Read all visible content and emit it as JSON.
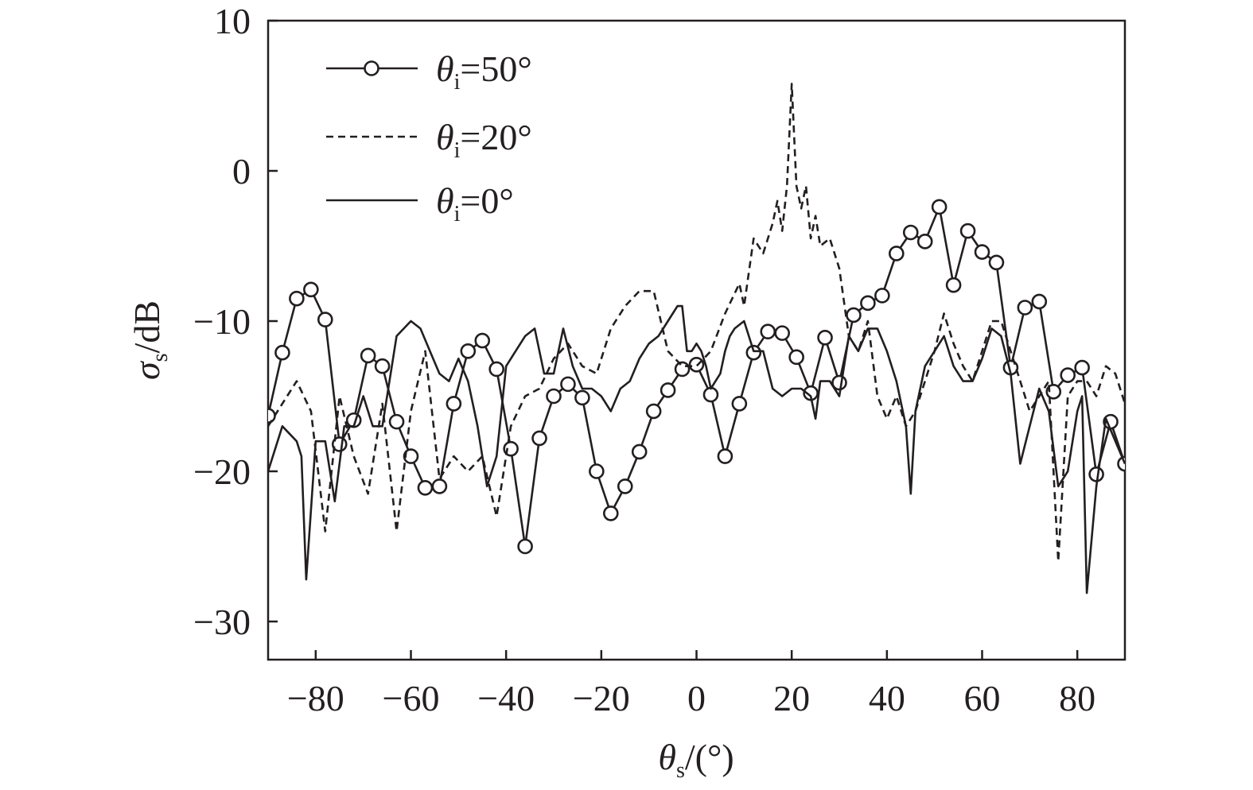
{
  "chart_data": {
    "type": "line",
    "xlabel": {
      "symbol": "θ",
      "sub": "s",
      "rest": "/(°)"
    },
    "ylabel": {
      "symbol": "σ",
      "sub": "s",
      "rest": "/dB"
    },
    "xlim": [
      -90,
      90
    ],
    "ylim": [
      -33,
      10
    ],
    "xticks": [
      -80,
      -60,
      -40,
      -20,
      0,
      20,
      40,
      60,
      80
    ],
    "xtick_labels": [
      "−80",
      "−60",
      "−40",
      "−20",
      "0",
      "20",
      "40",
      "60",
      "80"
    ],
    "yticks": [
      10,
      0,
      -10,
      -20,
      -30
    ],
    "ytick_labels": [
      "10",
      "0",
      "−10",
      "−20",
      "−30"
    ],
    "grid": false,
    "legend_position": "top-left",
    "series": [
      {
        "name": "θi=50°",
        "legend": {
          "symbol": "θ",
          "sub": "i",
          "rest": "=50°"
        },
        "style": "solid-circle",
        "x": [
          -90,
          -87,
          -84,
          -81,
          -78,
          -75,
          -72,
          -69,
          -66,
          -63,
          -60,
          -57,
          -54,
          -51,
          -48,
          -45,
          -42,
          -39,
          -36,
          -33,
          -30,
          -27,
          -24,
          -21,
          -18,
          -15,
          -12,
          -9,
          -6,
          -3,
          0,
          3,
          6,
          9,
          12,
          15,
          18,
          21,
          24,
          27,
          30,
          33,
          36,
          39,
          42,
          45,
          48,
          51,
          54,
          57,
          60,
          63,
          66,
          69,
          72,
          75,
          78,
          81,
          84,
          87,
          90
        ],
        "y": [
          -16.3,
          -12.1,
          -8.5,
          -7.9,
          -9.9,
          -18.2,
          -16.6,
          -12.3,
          -13,
          -16.7,
          -19,
          -21.1,
          -21,
          -15.5,
          -12,
          -11.3,
          -13.2,
          -18.5,
          -25,
          -17.8,
          -15,
          -14.2,
          -15.1,
          -20,
          -22.8,
          -21,
          -18.7,
          -16,
          -14.6,
          -13.2,
          -12.9,
          -14.9,
          -19,
          -15.5,
          -12.1,
          -10.7,
          -10.8,
          -12.4,
          -14.8,
          -11.1,
          -14.1,
          -9.6,
          -8.8,
          -8.3,
          -5.5,
          -4.1,
          -4.7,
          -2.4,
          -7.6,
          -4,
          -5.4,
          -6.1,
          -13.1,
          -9.1,
          -8.7,
          -14.7,
          -13.6,
          -13.1,
          -20.2,
          -16.7,
          -19.5
        ]
      },
      {
        "name": "θi=20°",
        "legend": {
          "symbol": "θ",
          "sub": "i",
          "rest": "=20°"
        },
        "style": "dashed",
        "x": [
          -90,
          -87,
          -84,
          -81,
          -78,
          -75,
          -72,
          -69,
          -66,
          -63,
          -60,
          -57,
          -54,
          -51,
          -48,
          -45,
          -42,
          -39,
          -36,
          -33,
          -30,
          -27,
          -24,
          -21,
          -18,
          -15,
          -12,
          -9,
          -6,
          -3,
          0,
          3,
          6,
          9,
          10,
          12,
          14,
          16,
          17,
          18,
          19,
          20,
          21,
          22,
          23,
          24,
          25,
          26,
          28,
          30,
          32,
          34,
          36,
          38,
          40,
          42,
          44,
          46,
          48,
          50,
          52,
          54,
          56,
          58,
          60,
          62,
          64,
          66,
          68,
          70,
          72,
          74,
          76,
          78,
          80,
          82,
          84,
          86,
          88,
          90
        ],
        "y": [
          -17,
          -15.5,
          -14,
          -16,
          -24,
          -15,
          -19,
          -21.5,
          -15.5,
          -24,
          -16,
          -12,
          -20.5,
          -19,
          -20,
          -19,
          -23,
          -17,
          -15,
          -14.5,
          -12.5,
          -11.5,
          -13,
          -13.5,
          -10.5,
          -9,
          -8,
          -8,
          -12,
          -13,
          -13,
          -12,
          -9.5,
          -7.5,
          -9,
          -4.5,
          -5.5,
          -3.5,
          -2,
          -4,
          -1,
          5.8,
          -1,
          -2.5,
          -1,
          -4.5,
          -3,
          -5,
          -4.5,
          -6.5,
          -11,
          -12,
          -10,
          -15,
          -16.5,
          -15,
          -17,
          -16,
          -14,
          -12,
          -9.5,
          -11.5,
          -13,
          -14,
          -12,
          -10,
          -10,
          -12,
          -14,
          -16,
          -15,
          -14,
          -26,
          -15,
          -14,
          -14,
          -15,
          -13,
          -13.5,
          -15.5
        ]
      },
      {
        "name": "θi=0°",
        "legend": {
          "symbol": "θ",
          "sub": "i",
          "rest": "=0°"
        },
        "style": "solid",
        "x": [
          -90,
          -87,
          -84,
          -83,
          -82,
          -80,
          -78,
          -76,
          -74,
          -72,
          -70,
          -68,
          -66,
          -63,
          -60,
          -58,
          -56,
          -54,
          -52,
          -50,
          -48,
          -46,
          -44,
          -42,
          -40,
          -38,
          -36,
          -34,
          -32,
          -30,
          -28,
          -26,
          -24,
          -22,
          -20,
          -18,
          -16,
          -14,
          -12,
          -10,
          -8,
          -6,
          -5,
          -4,
          -3,
          -2,
          -1,
          0,
          1,
          2,
          3,
          4,
          5,
          6,
          7,
          8,
          10,
          12,
          14,
          16,
          18,
          20,
          22,
          24,
          25,
          26,
          28,
          30,
          32,
          34,
          36,
          38,
          40,
          42,
          44,
          45,
          46,
          48,
          50,
          52,
          54,
          56,
          58,
          60,
          62,
          64,
          66,
          68,
          70,
          72,
          74,
          76,
          78,
          80,
          81,
          82,
          84,
          86,
          88,
          90
        ],
        "y": [
          -20,
          -17,
          -18,
          -19,
          -27.2,
          -18,
          -18,
          -22,
          -17,
          -17,
          -15,
          -17,
          -17,
          -11,
          -10,
          -10.5,
          -12,
          -13.5,
          -14,
          -12.5,
          -14,
          -17,
          -21,
          -19,
          -13,
          -12,
          -11,
          -10.5,
          -13.5,
          -13.5,
          -10.5,
          -13,
          -14.5,
          -14.5,
          -15,
          -16,
          -14.5,
          -14,
          -12.5,
          -11.5,
          -11,
          -10,
          -9.5,
          -9,
          -9,
          -12,
          -12,
          -11.5,
          -12,
          -13,
          -14.5,
          -14,
          -13.5,
          -12,
          -11,
          -10.5,
          -10,
          -12,
          -12,
          -14.5,
          -15,
          -14.5,
          -14.5,
          -15,
          -16.5,
          -14,
          -14,
          -15,
          -11,
          -12,
          -10.5,
          -10.5,
          -12,
          -14,
          -17,
          -21.5,
          -16,
          -13,
          -12,
          -11,
          -13,
          -14,
          -14,
          -12.5,
          -10.5,
          -11,
          -13.5,
          -19.5,
          -17,
          -14.5,
          -16,
          -21,
          -20,
          -16,
          -15,
          -28.1,
          -21,
          -16.5,
          -18,
          -19.5
        ]
      }
    ]
  }
}
